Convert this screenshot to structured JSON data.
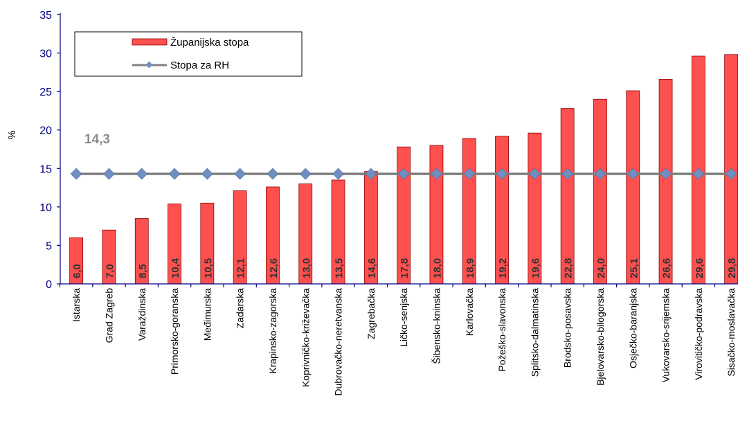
{
  "chart_data": {
    "type": "bar",
    "ylabel": "%",
    "ylim": [
      0,
      35
    ],
    "yticks": [
      0,
      5,
      10,
      15,
      20,
      25,
      30,
      35
    ],
    "grid": false,
    "legend_position": "top-left",
    "categories": [
      "Istarska",
      "Grad Zagreb",
      "Varaždinska",
      "Primorsko-goranska",
      "Međimurska",
      "Zadarska",
      "Krapinsko-zagorska",
      "Koprivničko-križevačka",
      "Dubrovačko-neretvanska",
      "Zagrebačka",
      "Ličko-senjska",
      "Šibensko-kninska",
      "Karlovačka",
      "Požeško-slavonska",
      "Splitsko-dalmatinska",
      "Brodsko-posavska",
      "Bjelovarsko-bilogorska",
      "Osječko-baranjska",
      "Vukovarsko-srijemska",
      "Virovitičko-podravska",
      "Sisačko-moslavačka"
    ],
    "series": [
      {
        "name": "Županijska stopa",
        "kind": "bar",
        "color": "#ff5050",
        "values": [
          6.0,
          7.0,
          8.5,
          10.4,
          10.5,
          12.1,
          12.6,
          13.0,
          13.5,
          14.6,
          17.8,
          18.0,
          18.9,
          19.2,
          19.6,
          22.8,
          24.0,
          25.1,
          26.6,
          29.6,
          29.8
        ],
        "labels": [
          "6,0",
          "7,0",
          "8,5",
          "10,4",
          "10,5",
          "12,1",
          "12,6",
          "13,0",
          "13,5",
          "14,6",
          "17,8",
          "18,0",
          "18,9",
          "19,2",
          "19,6",
          "22,8",
          "24,0",
          "25,1",
          "26,6",
          "29,6",
          "29,8"
        ]
      },
      {
        "name": "Stopa za RH",
        "kind": "line",
        "color": "#7f7f7f",
        "marker_color": "#6f8fc0",
        "value": 14.3
      }
    ],
    "annotation": "14,3",
    "axis_color": "#000080"
  }
}
